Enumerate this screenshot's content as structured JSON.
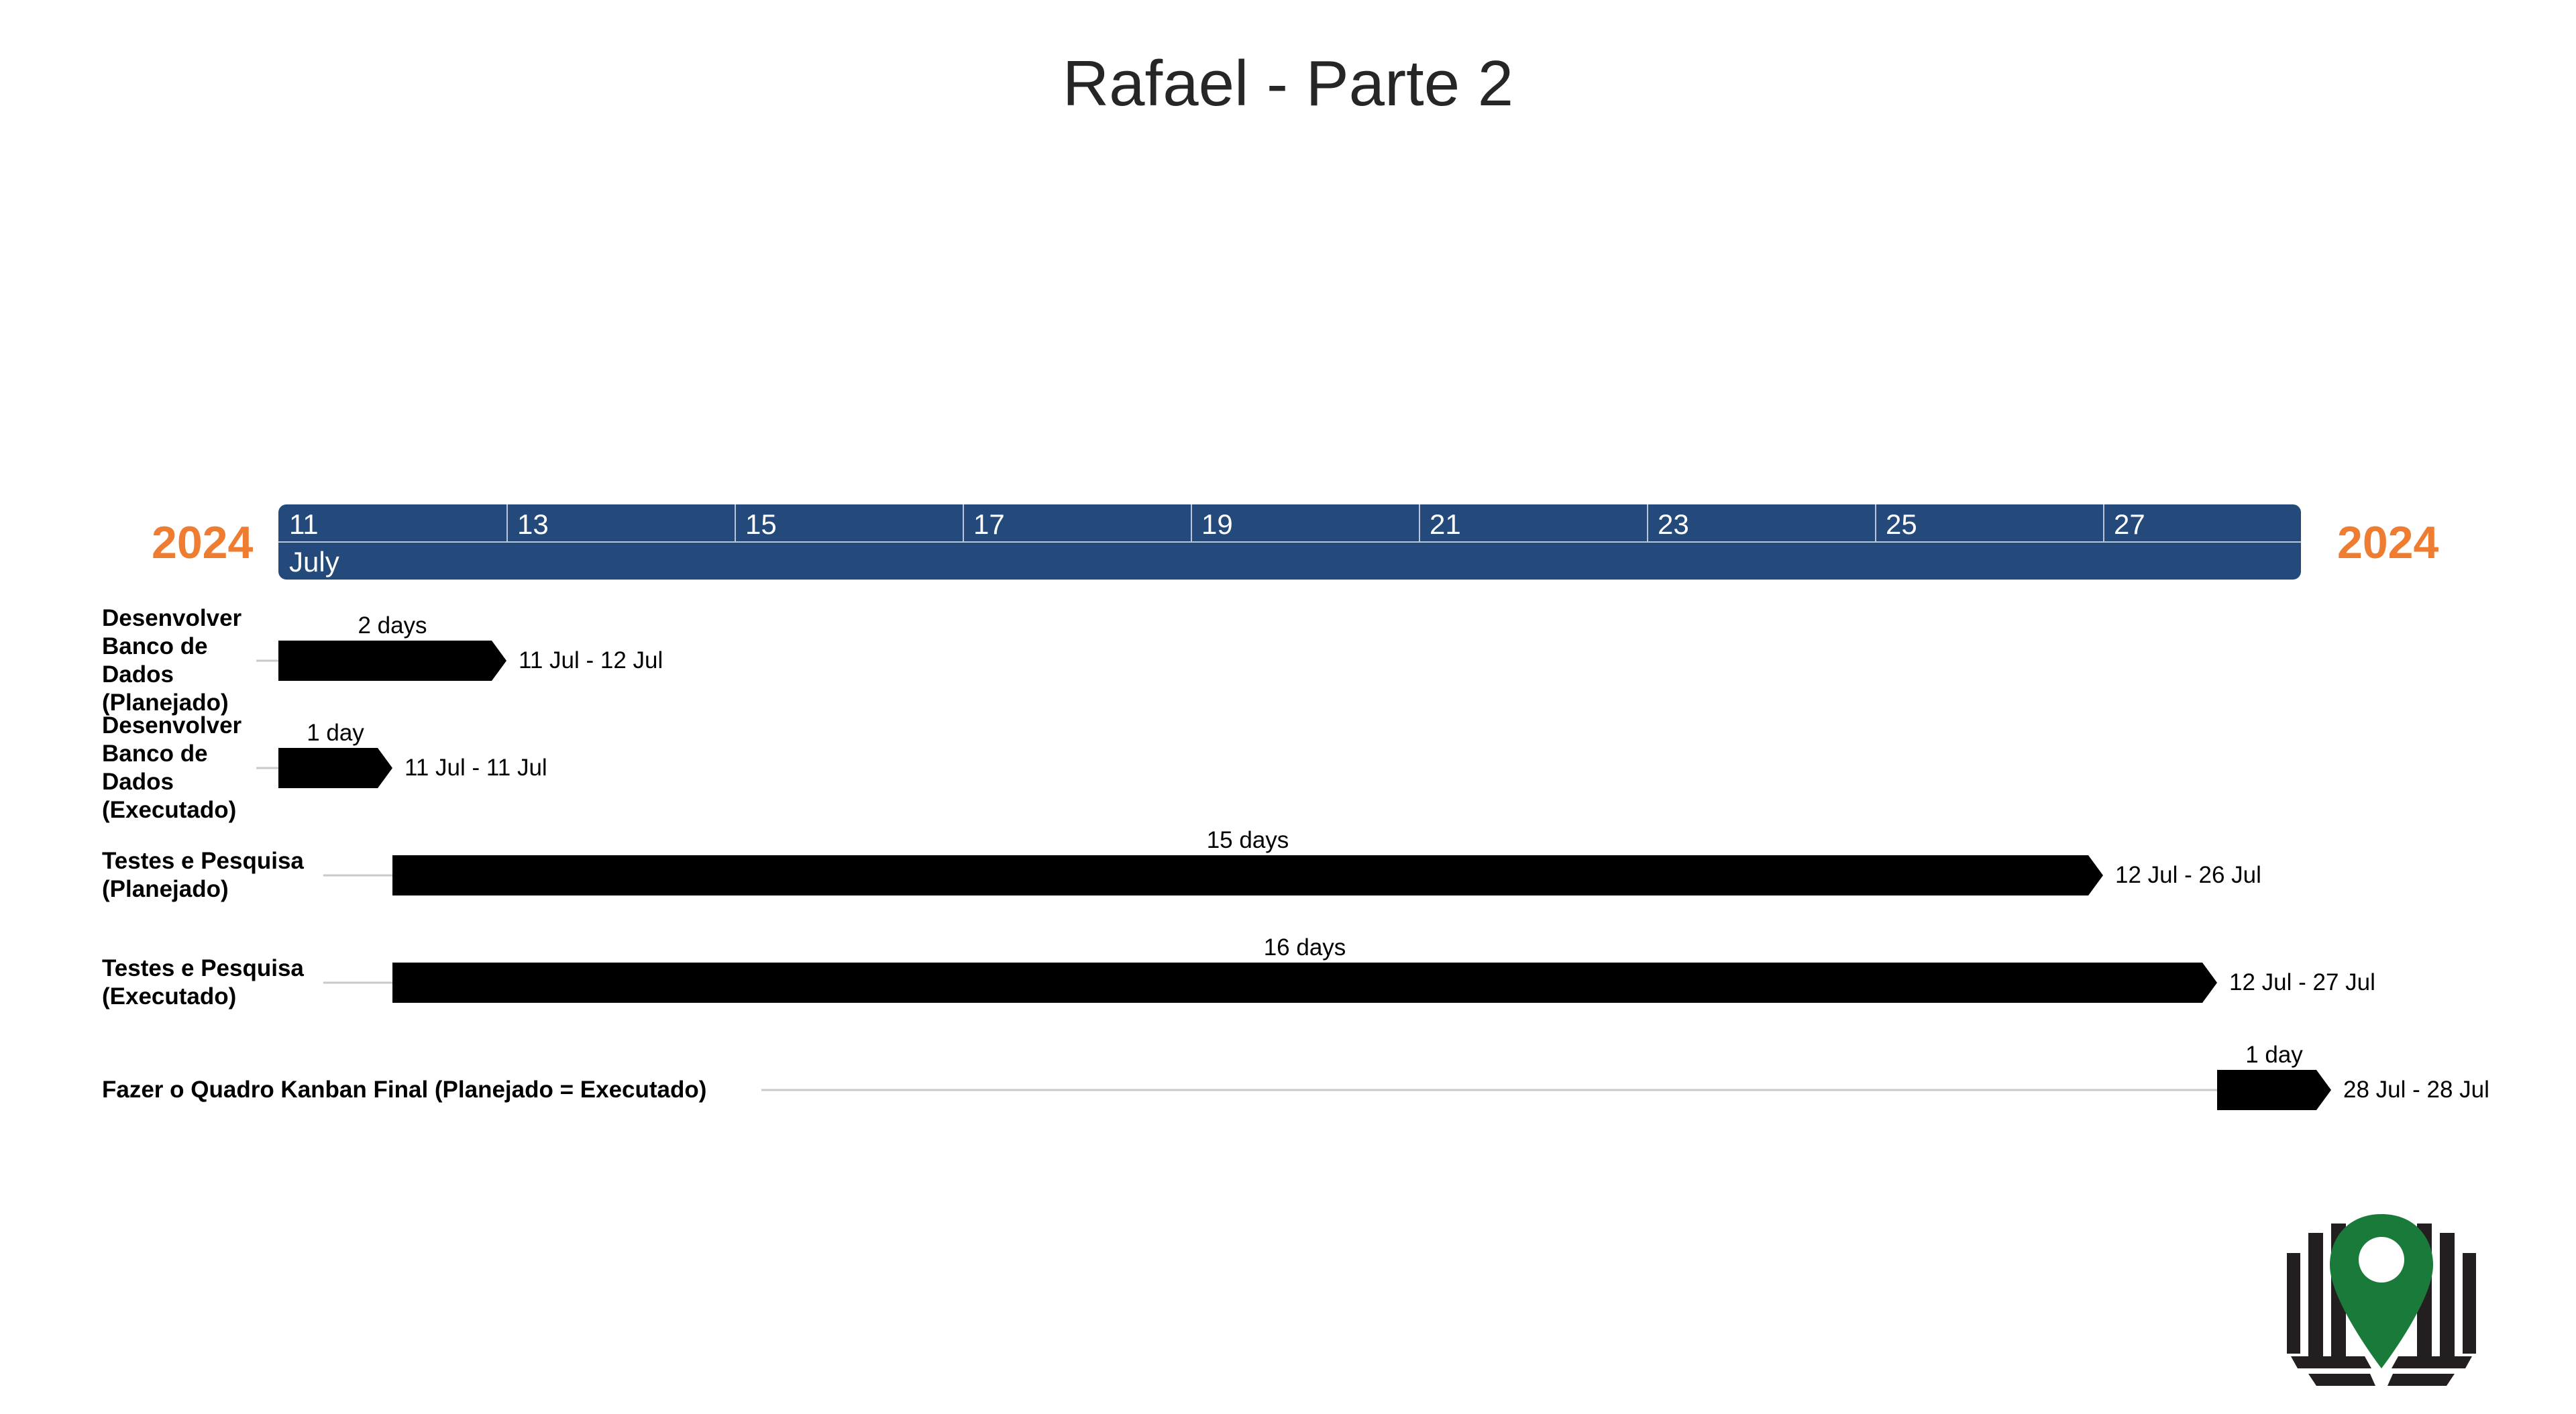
{
  "title": "Rafael - Parte 2",
  "year_left": "2024",
  "year_right": "2024",
  "colors": {
    "timescale": "#244a7c",
    "year": "#ee7d31",
    "bars": "#000000",
    "connector": "#c8c8c8",
    "logo_pin": "#1a7a3a"
  },
  "chart_data": {
    "type": "gantt",
    "title": "Rafael - Parte 2",
    "x_range": [
      "2024-07-11",
      "2024-07-28"
    ],
    "month_label": "July",
    "tick_labels": [
      "11",
      "13",
      "15",
      "17",
      "19",
      "21",
      "23",
      "25",
      "27"
    ],
    "tasks": [
      {
        "label_lines": [
          "Desenvolver",
          "Banco de",
          "Dados",
          "(Planejado)"
        ],
        "start": "2024-07-11",
        "end": "2024-07-12",
        "duration_label": "2 days",
        "date_label": "11 Jul - 12 Jul"
      },
      {
        "label_lines": [
          "Desenvolver",
          "Banco de",
          "Dados",
          "(Executado)"
        ],
        "start": "2024-07-11",
        "end": "2024-07-11",
        "duration_label": "1 day",
        "date_label": "11 Jul - 11 Jul"
      },
      {
        "label_lines": [
          "Testes e Pesquisa",
          "(Planejado)"
        ],
        "start": "2024-07-12",
        "end": "2024-07-26",
        "duration_label": "15 days",
        "date_label": "12 Jul - 26 Jul"
      },
      {
        "label_lines": [
          "Testes e Pesquisa",
          "(Executado)"
        ],
        "start": "2024-07-12",
        "end": "2024-07-27",
        "duration_label": "16 days",
        "date_label": "12 Jul - 27 Jul"
      },
      {
        "label_lines": [
          "Fazer o Quadro Kanban Final (Planejado = Executado)"
        ],
        "start": "2024-07-28",
        "end": "2024-07-28",
        "duration_label": "1 day",
        "date_label": "28 Jul - 28 Jul"
      }
    ]
  }
}
